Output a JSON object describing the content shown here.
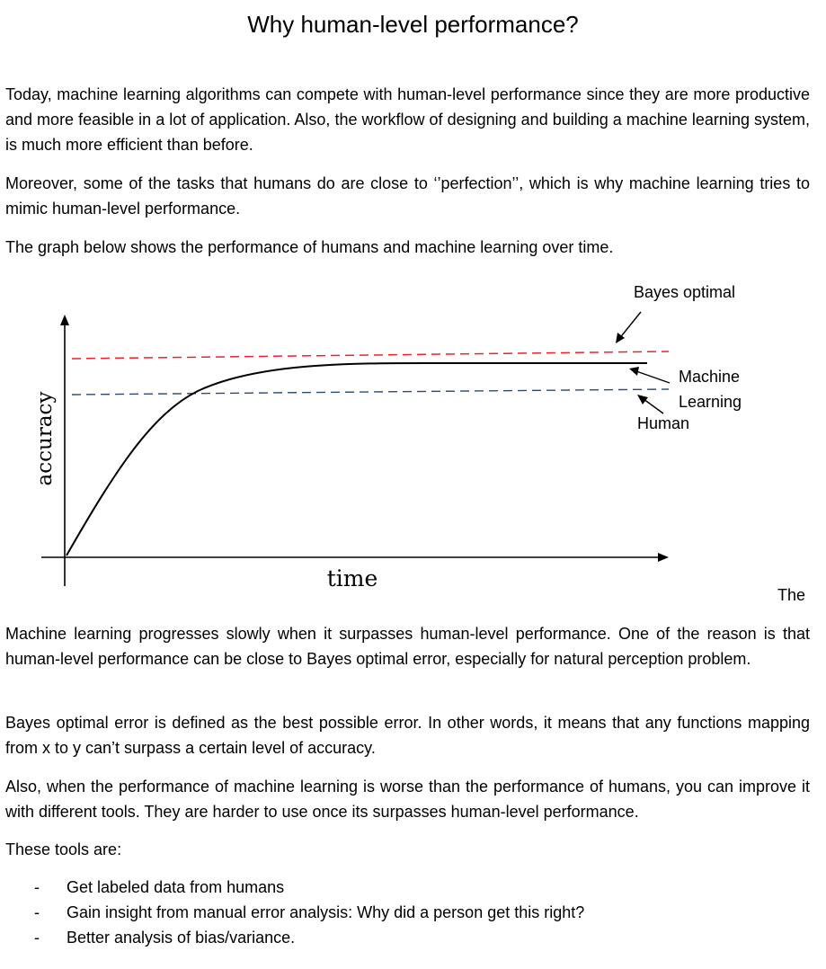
{
  "document": {
    "title": "Why human-level performance?",
    "paragraphs": [
      "Today, machine learning algorithms can compete with human-level performance since they are more productive and more feasible in a lot of application. Also, the workflow of designing and building a machine learning system, is much more efficient than before.",
      "Moreover, some of the tasks that humans do are close to ‘’perfection’’, which is why machine learning tries to mimic human-level performance.",
      "The graph below shows the performance of humans and machine learning over time."
    ],
    "trailing_word": "The",
    "paragraphs_after": [
      "Machine learning progresses slowly when it surpasses human-level performance. One of the reason is that human-level performance can be close to Bayes optimal error, especially for natural perception problem.",
      "Bayes optimal error is defined as the best possible error. In other words, it means that any functions mapping from x to y can’t surpass a certain level of accuracy.",
      "Also, when the performance of machine learning is worse than the performance of humans, you can improve it with different tools. They are harder to use once its surpasses human-level performance.",
      "These tools are:"
    ],
    "tools": [
      {
        "bullet": "-",
        "text": "Get labeled data from humans"
      },
      {
        "bullet": "-",
        "text": "Gain insight from manual error analysis: Why did a person get this right?"
      },
      {
        "bullet": "-",
        "text": "Better analysis of bias/variance."
      }
    ]
  },
  "figure": {
    "xlabel": "time",
    "ylabel": "accuracy",
    "labels": {
      "bayes": "Bayes optimal",
      "ml_line1": "Machine",
      "ml_line2": "Learning",
      "human": "Human"
    },
    "colors": {
      "bayes": "#e8252a",
      "human": "#2d4a7a",
      "curve": "#000000"
    }
  }
}
